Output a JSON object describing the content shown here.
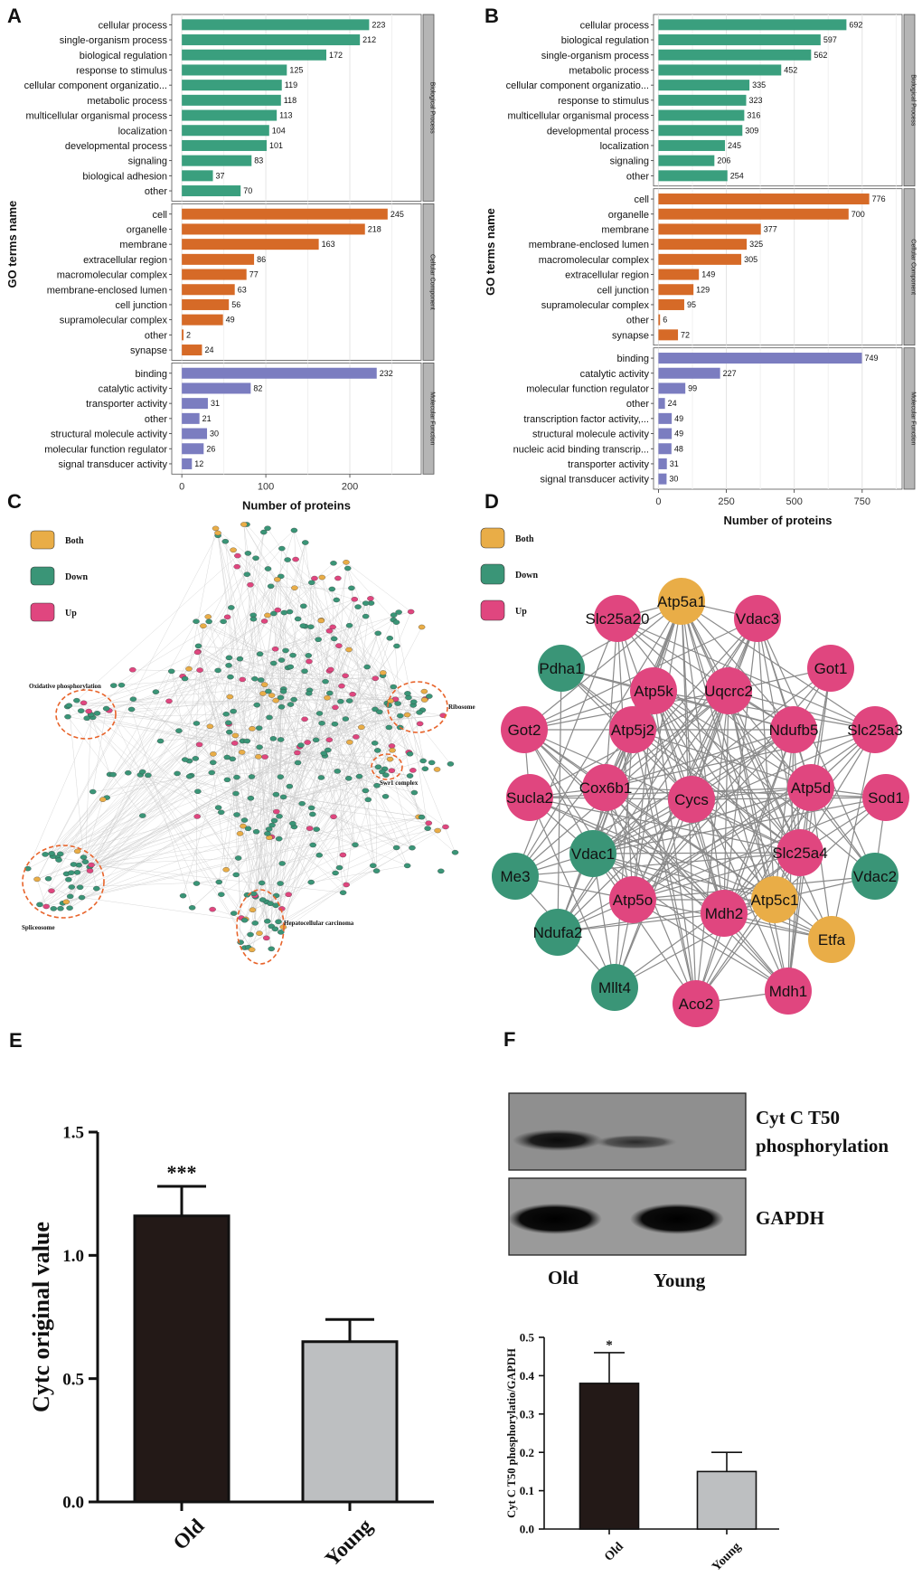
{
  "panels": {
    "A": "A",
    "B": "B",
    "C": "C",
    "D": "D",
    "E": "E",
    "F": "F"
  },
  "colors": {
    "bp": "#3a9f7e",
    "cc": "#d66a27",
    "mf": "#7b7dc0",
    "both": "#e9ad47",
    "down": "#3a9577",
    "up": "#e0467f",
    "old": "#231917",
    "young": "#bdbfc1"
  },
  "chart_data": [
    {
      "panel": "A",
      "type": "bar",
      "orientation": "horizontal",
      "xlabel": "Number of proteins",
      "ylabel": "GO terms name",
      "xlim": [
        -12,
        285
      ],
      "xticks": [
        0,
        100,
        200
      ],
      "groups": [
        {
          "name": "Biological Process",
          "color": "bp",
          "categories": [
            "cellular process",
            "single-organism process",
            "biological regulation",
            "response to stimulus",
            "cellular component organizatio...",
            "metabolic process",
            "multicellular organismal process",
            "localization",
            "developmental process",
            "signaling",
            "biological adhesion",
            "other"
          ],
          "values": [
            223,
            212,
            172,
            125,
            119,
            118,
            113,
            104,
            101,
            83,
            37,
            70
          ]
        },
        {
          "name": "Cellular Component",
          "color": "cc",
          "categories": [
            "cell",
            "organelle",
            "membrane",
            "extracellular region",
            "macromolecular complex",
            "membrane-enclosed lumen",
            "cell junction",
            "supramolecular complex",
            "other",
            "synapse"
          ],
          "values": [
            245,
            218,
            163,
            86,
            77,
            63,
            56,
            49,
            2,
            24
          ]
        },
        {
          "name": "Molecular Function",
          "color": "mf",
          "categories": [
            "binding",
            "catalytic activity",
            "transporter activity",
            "other",
            "structural molecule activity",
            "molecular function regulator",
            "signal transducer activity"
          ],
          "values": [
            232,
            82,
            31,
            21,
            30,
            26,
            12
          ]
        }
      ]
    },
    {
      "panel": "B",
      "type": "bar",
      "orientation": "horizontal",
      "xlabel": "Number of proteins",
      "ylabel": "GO terms name",
      "xlim": [
        -18,
        897
      ],
      "xticks": [
        0,
        250,
        500,
        750
      ],
      "groups": [
        {
          "name": "Biological Process",
          "color": "bp",
          "categories": [
            "cellular process",
            "biological regulation",
            "single-organism process",
            "metabolic process",
            "cellular component organizatio...",
            "response to stimulus",
            "multicellular organismal process",
            "developmental process",
            "localization",
            "signaling",
            "other"
          ],
          "values": [
            692,
            597,
            562,
            452,
            335,
            323,
            316,
            309,
            245,
            206,
            254
          ]
        },
        {
          "name": "Cellular Component",
          "color": "cc",
          "categories": [
            "cell",
            "organelle",
            "membrane",
            "membrane-enclosed lumen",
            "macromolecular complex",
            "extracellular region",
            "cell junction",
            "supramolecular complex",
            "other",
            "synapse"
          ],
          "values": [
            776,
            700,
            377,
            325,
            305,
            149,
            129,
            95,
            6,
            72
          ]
        },
        {
          "name": "Molecular Function",
          "color": "mf",
          "categories": [
            "binding",
            "catalytic activity",
            "molecular function regulator",
            "other",
            "transcription factor activity,...",
            "structural molecule activity",
            "nucleic acid binding transcrip...",
            "transporter activity",
            "signal transducer activity"
          ],
          "values": [
            749,
            227,
            99,
            24,
            49,
            49,
            48,
            31,
            30
          ]
        }
      ]
    },
    {
      "panel": "E",
      "type": "bar",
      "title": "",
      "xlabel": "",
      "ylabel": "Cytc original value",
      "ylim": [
        0,
        1.5
      ],
      "yticks": [
        "0.0",
        "0.5",
        "1.0",
        "1.5"
      ],
      "categories": [
        "Old",
        "Young"
      ],
      "values": [
        1.16,
        0.65
      ],
      "errors": [
        0.12,
        0.09
      ],
      "significance": [
        "***",
        ""
      ]
    },
    {
      "panel": "F",
      "type": "bar",
      "title": "",
      "xlabel": "",
      "ylabel": "Cyt C T50 phosphorylatio/GAPDH",
      "ylim": [
        0,
        0.5
      ],
      "yticks": [
        "0.0",
        "0.1",
        "0.2",
        "0.3",
        "0.4",
        "0.5"
      ],
      "categories": [
        "Old",
        "Young"
      ],
      "values": [
        0.38,
        0.15
      ],
      "errors": [
        0.08,
        0.05
      ],
      "significance": [
        "*",
        ""
      ]
    }
  ],
  "network_c": {
    "legend": [
      {
        "label": "Both",
        "color": "both"
      },
      {
        "label": "Down",
        "color": "down"
      },
      {
        "label": "Up",
        "color": "up"
      }
    ],
    "clusters": [
      "Oxidative phosphorylation",
      "Ribosome",
      "Swr1 complex",
      "Spliceosome",
      "Hepatocellular carcinoma"
    ]
  },
  "network_d": {
    "legend": [
      {
        "label": "Both",
        "color": "both"
      },
      {
        "label": "Down",
        "color": "down"
      },
      {
        "label": "Up",
        "color": "up"
      }
    ],
    "nodes": [
      {
        "id": "Atp5a1",
        "type": "both"
      },
      {
        "id": "Slc25a20",
        "type": "up"
      },
      {
        "id": "Vdac3",
        "type": "up"
      },
      {
        "id": "Pdha1",
        "type": "down"
      },
      {
        "id": "Got1",
        "type": "up"
      },
      {
        "id": "Atp5k",
        "type": "up"
      },
      {
        "id": "Uqcrc2",
        "type": "up"
      },
      {
        "id": "Got2",
        "type": "up"
      },
      {
        "id": "Atp5j2",
        "type": "up"
      },
      {
        "id": "Ndufb5",
        "type": "up"
      },
      {
        "id": "Slc25a3",
        "type": "up"
      },
      {
        "id": "Sucla2",
        "type": "up"
      },
      {
        "id": "Cox6b1",
        "type": "up"
      },
      {
        "id": "Cycs",
        "type": "up"
      },
      {
        "id": "Atp5d",
        "type": "up"
      },
      {
        "id": "Sod1",
        "type": "up"
      },
      {
        "id": "Vdac1",
        "type": "down"
      },
      {
        "id": "Slc25a4",
        "type": "up"
      },
      {
        "id": "Me3",
        "type": "down"
      },
      {
        "id": "Vdac2",
        "type": "down"
      },
      {
        "id": "Atp5o",
        "type": "up"
      },
      {
        "id": "Mdh2",
        "type": "up"
      },
      {
        "id": "Atp5c1",
        "type": "both"
      },
      {
        "id": "Ndufa2",
        "type": "down"
      },
      {
        "id": "Etfa",
        "type": "both"
      },
      {
        "id": "Mllt4",
        "type": "down"
      },
      {
        "id": "Aco2",
        "type": "up"
      },
      {
        "id": "Mdh1",
        "type": "up"
      }
    ]
  },
  "blot": {
    "row1": "Cyt C T50",
    "row1b": "phosphorylation",
    "row2": "GAPDH",
    "lane1": "Old",
    "lane2": "Young"
  }
}
